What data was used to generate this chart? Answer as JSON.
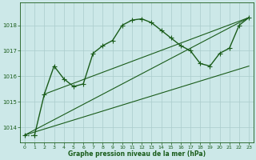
{
  "background_color": "#cce8e8",
  "grid_color": "#aacccc",
  "line_color": "#1a5c1a",
  "xlabel": "Graphe pression niveau de la mer (hPa)",
  "xlim": [
    -0.5,
    23.5
  ],
  "ylim": [
    1013.4,
    1018.9
  ],
  "yticks": [
    1014,
    1015,
    1016,
    1017,
    1018
  ],
  "xticks": [
    0,
    1,
    2,
    3,
    4,
    5,
    6,
    7,
    8,
    9,
    10,
    11,
    12,
    13,
    14,
    15,
    16,
    17,
    18,
    19,
    20,
    21,
    22,
    23
  ],
  "main_x": [
    0,
    1,
    2,
    3,
    4,
    5,
    6,
    7,
    8,
    9,
    10,
    11,
    12,
    13,
    14,
    15,
    16,
    17,
    18,
    19,
    20,
    21,
    22,
    23
  ],
  "main_y": [
    1013.7,
    1013.7,
    1015.3,
    1016.4,
    1015.9,
    1015.6,
    1015.7,
    1016.9,
    1017.2,
    1017.4,
    1018.0,
    1018.2,
    1018.25,
    1018.1,
    1017.8,
    1017.5,
    1017.2,
    1017.0,
    1016.5,
    1016.4,
    1016.9,
    1017.1,
    1018.0,
    1018.3
  ],
  "trend1_x": [
    2,
    23
  ],
  "trend1_y": [
    1015.3,
    1018.3
  ],
  "trend2_x": [
    0,
    23
  ],
  "trend2_y": [
    1013.7,
    1018.3
  ],
  "trend3_x": [
    0,
    23
  ],
  "trend3_y": [
    1013.7,
    1016.4
  ]
}
